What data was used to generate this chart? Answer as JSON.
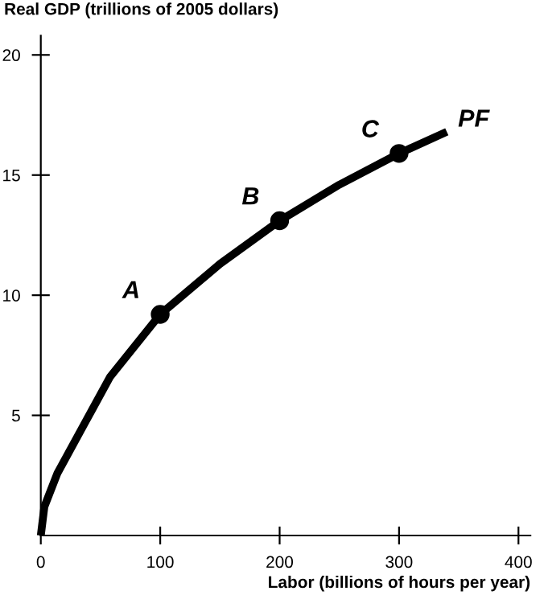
{
  "chart_data": {
    "type": "line",
    "xlabel": "Labor (billions of hours per year)",
    "ylabel": "Real GDP (trillions of 2005 dollars)",
    "series": [
      {
        "color": "#000000",
        "x": [
          0,
          3,
          14,
          36,
          58,
          100,
          150,
          200,
          250,
          300,
          340
        ],
        "values": [
          0,
          1.2,
          2.6,
          4.6,
          6.6,
          9.2,
          11.3,
          13.1,
          14.6,
          15.9,
          16.8
        ],
        "marker": "none"
      },
      {
        "type": "scatter",
        "color": "#000000",
        "x": [
          100,
          200,
          300
        ],
        "values": [
          9.2,
          13.1,
          15.9
        ],
        "marker": "circle"
      }
    ],
    "annotations": [
      {
        "text": "A",
        "x": 100,
        "y": 9.2
      },
      {
        "text": "B",
        "x": 200,
        "y": 13.1
      },
      {
        "text": "C",
        "x": 300,
        "y": 15.9
      },
      {
        "text": "PF",
        "x": 340,
        "y": 16.8
      }
    ],
    "xlim": [
      0,
      410
    ],
    "ylim": [
      0,
      20.8
    ],
    "xticks": [
      0,
      100,
      200,
      300,
      400
    ],
    "yticks": [
      5,
      10,
      15,
      20
    ],
    "grid": false,
    "legend": false
  }
}
